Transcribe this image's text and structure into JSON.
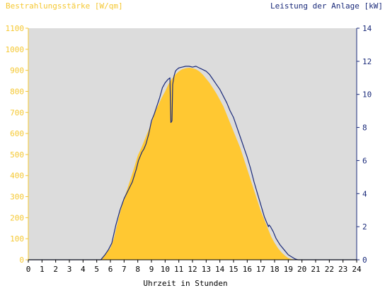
{
  "chart_data": {
    "type": "area",
    "left_axis_title": "Bestrahlungsstärke [W/qm]",
    "right_axis_title": "Leistung der Anlage [kW]",
    "xlabel": "Uhrzeit in Stunden",
    "xlim": [
      0,
      24
    ],
    "ylim_left": [
      0,
      1100
    ],
    "ylim_right": [
      0,
      14
    ],
    "x_ticks": [
      0,
      1,
      2,
      3,
      4,
      5,
      6,
      7,
      8,
      9,
      10,
      11,
      12,
      13,
      14,
      15,
      16,
      17,
      18,
      19,
      20,
      21,
      22,
      23,
      24
    ],
    "y_ticks_left": [
      0,
      100,
      200,
      300,
      400,
      500,
      600,
      700,
      800,
      900,
      1000,
      1100
    ],
    "y_ticks_right": [
      0,
      2,
      4,
      6,
      8,
      10,
      12,
      14
    ],
    "grid": false,
    "colors": {
      "plot_background": "#dcdcdc",
      "irradiance_fill": "#ffc832",
      "power_line": "#1a2a7a",
      "left_axis": "#f5c832",
      "right_axis": "#1a2a7a"
    },
    "series": [
      {
        "axis": "left",
        "style": "area",
        "x": [
          0,
          5.3,
          5.5,
          5.75,
          6.0,
          6.25,
          6.5,
          6.75,
          7.0,
          7.25,
          7.5,
          7.75,
          8.0,
          8.25,
          8.5,
          8.75,
          9.0,
          9.25,
          9.5,
          9.75,
          10.0,
          10.25,
          10.5,
          10.75,
          11.0,
          11.25,
          11.5,
          11.75,
          12.0,
          12.25,
          12.5,
          12.75,
          13.0,
          13.25,
          13.5,
          13.75,
          14.0,
          14.25,
          14.5,
          14.75,
          15.0,
          15.25,
          15.5,
          15.75,
          16.0,
          16.25,
          16.5,
          16.75,
          17.0,
          17.25,
          17.5,
          17.75,
          18.0,
          18.25,
          18.5,
          18.75,
          19.0,
          19.25,
          19.5,
          19.75,
          24
        ],
        "values": [
          0,
          0,
          15,
          35,
          55,
          100,
          170,
          235,
          290,
          340,
          390,
          440,
          495,
          530,
          570,
          610,
          650,
          700,
          735,
          770,
          800,
          835,
          860,
          880,
          895,
          905,
          910,
          912,
          910,
          905,
          895,
          880,
          860,
          840,
          815,
          790,
          760,
          730,
          690,
          650,
          610,
          570,
          530,
          480,
          430,
          380,
          330,
          280,
          230,
          190,
          150,
          110,
          80,
          55,
          35,
          20,
          8,
          3,
          1,
          0,
          0
        ]
      },
      {
        "axis": "right",
        "style": "line",
        "x": [
          0,
          5.3,
          5.6,
          5.85,
          6.1,
          6.4,
          6.7,
          7.0,
          7.3,
          7.6,
          7.9,
          8.05,
          8.15,
          8.3,
          8.45,
          8.6,
          8.8,
          9.0,
          9.2,
          9.4,
          9.6,
          9.8,
          10.0,
          10.2,
          10.35,
          10.4,
          10.42,
          10.5,
          10.55,
          10.65,
          10.75,
          10.85,
          11.0,
          11.25,
          11.5,
          11.75,
          12.0,
          12.25,
          12.5,
          12.75,
          13.0,
          13.25,
          13.5,
          13.75,
          14.0,
          14.25,
          14.5,
          14.75,
          15.0,
          15.25,
          15.5,
          15.75,
          16.0,
          16.25,
          16.5,
          16.75,
          17.0,
          17.25,
          17.5,
          17.55,
          17.6,
          17.7,
          17.9,
          18.1,
          18.4,
          18.7,
          19.0,
          19.3,
          19.5,
          19.7,
          24
        ],
        "values": [
          0,
          0,
          0.3,
          0.6,
          1.0,
          2.1,
          3.0,
          3.7,
          4.2,
          4.7,
          5.5,
          6.0,
          6.2,
          6.5,
          6.7,
          7.0,
          7.6,
          8.4,
          8.8,
          9.3,
          9.8,
          10.4,
          10.7,
          10.9,
          11.0,
          9.0,
          8.3,
          8.4,
          10.6,
          11.1,
          11.4,
          11.5,
          11.6,
          11.65,
          11.7,
          11.7,
          11.65,
          11.7,
          11.6,
          11.5,
          11.4,
          11.2,
          10.9,
          10.6,
          10.3,
          9.9,
          9.5,
          9.0,
          8.6,
          8.0,
          7.4,
          6.8,
          6.2,
          5.5,
          4.7,
          4.0,
          3.3,
          2.6,
          2.1,
          2.0,
          2.1,
          2.0,
          1.7,
          1.3,
          0.9,
          0.6,
          0.3,
          0.15,
          0.05,
          0,
          0
        ]
      }
    ]
  }
}
